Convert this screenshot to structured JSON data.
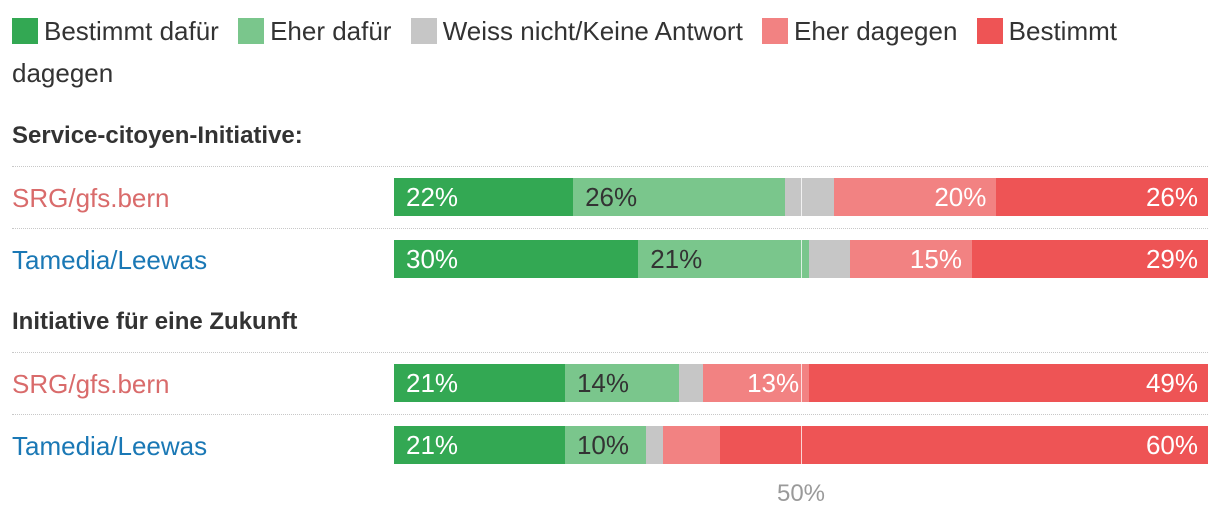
{
  "legend": [
    {
      "label": "Bestimmt dafür",
      "color": "#33a853"
    },
    {
      "label": "Eher dafür",
      "color": "#7ac68c"
    },
    {
      "label": "Weiss nicht/Keine Antwort",
      "color": "#c6c6c6"
    },
    {
      "label": "Eher dagegen",
      "color": "#f28282"
    },
    {
      "label": "Bestimmt dagegen",
      "color": "#ee5455"
    }
  ],
  "source_colors": {
    "SRG/gfs.bern": "#d96b6b",
    "Tamedia/Leewas": "#1a78b5"
  },
  "label_colors": {
    "dark": "#333333",
    "light": "#ffffff"
  },
  "axis": {
    "tick_label": "50%",
    "tick_value": 50
  },
  "chart_data": {
    "type": "bar",
    "orientation": "horizontal",
    "stacked": true,
    "xlim": [
      0,
      100
    ],
    "series_names": [
      "Bestimmt dafür",
      "Eher dafür",
      "Weiss nicht/Keine Antwort",
      "Eher dagegen",
      "Bestimmt dagegen"
    ],
    "groups": [
      {
        "title": "Service-citoyen-Initiative:",
        "rows": [
          {
            "label": "SRG/gfs.bern",
            "values": [
              22,
              26,
              6,
              20,
              26
            ],
            "labels": [
              "22%",
              "26%",
              "",
              "20%",
              "26%"
            ]
          },
          {
            "label": "Tamedia/Leewas",
            "values": [
              30,
              21,
              5,
              15,
              29
            ],
            "labels": [
              "30%",
              "21%",
              "",
              "15%",
              "29%"
            ]
          }
        ]
      },
      {
        "title": "Initiative für eine Zukunft",
        "rows": [
          {
            "label": "SRG/gfs.bern",
            "values": [
              21,
              14,
              3,
              13,
              49
            ],
            "labels": [
              "21%",
              "14%",
              "",
              "13%",
              "49%"
            ]
          },
          {
            "label": "Tamedia/Leewas",
            "values": [
              21,
              10,
              2,
              7,
              60
            ],
            "labels": [
              "21%",
              "10%",
              "",
              "",
              "60%"
            ]
          }
        ]
      }
    ]
  }
}
